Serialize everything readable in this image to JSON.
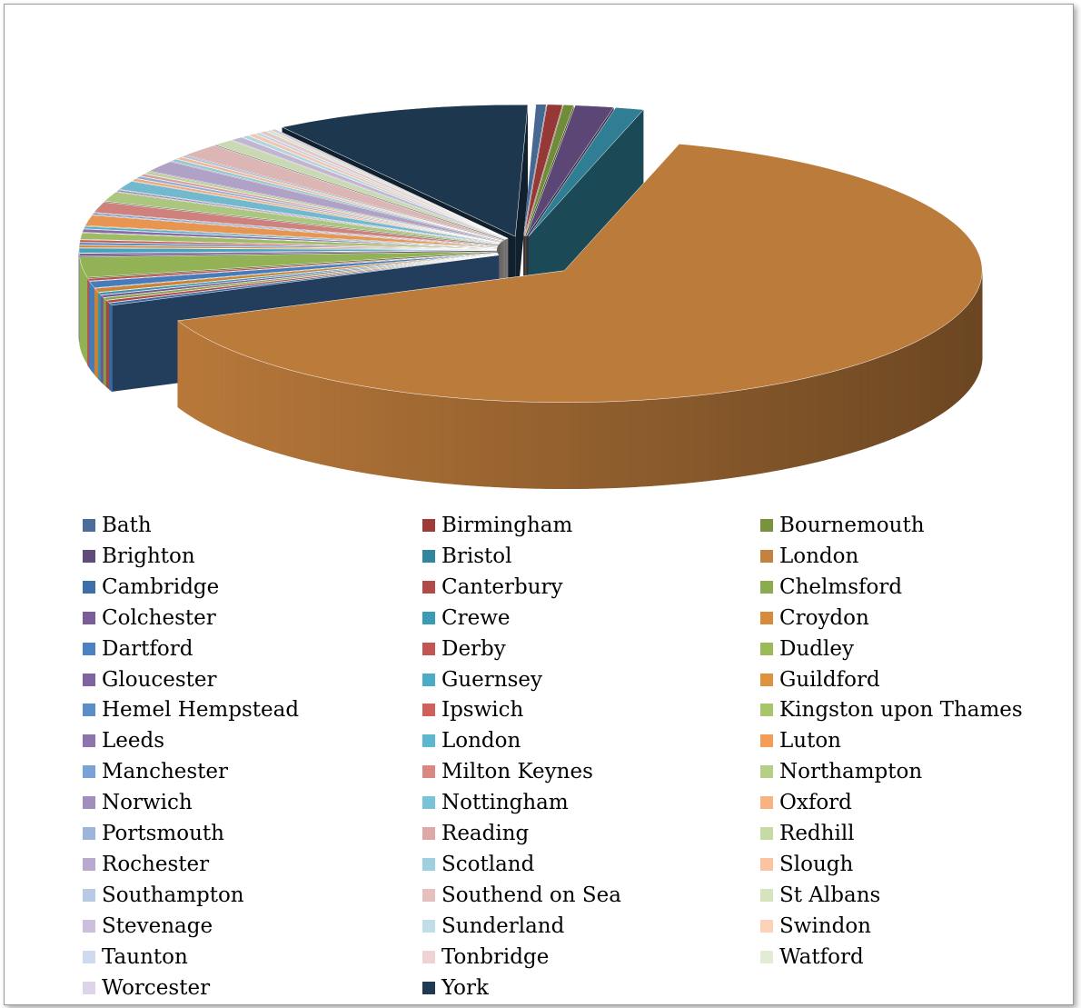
{
  "chart_data": {
    "type": "pie",
    "style": "3d-exploded",
    "legend_position": "bottom",
    "labels_shown": false,
    "slices": [
      {
        "label": "Bath",
        "value": 0.4,
        "color": "#4a6d9a"
      },
      {
        "label": "Birmingham",
        "value": 0.6,
        "color": "#9e3b38"
      },
      {
        "label": "Bournemouth",
        "value": 0.4,
        "color": "#77933c"
      },
      {
        "label": "Brighton",
        "value": 1.5,
        "color": "#604a7b"
      },
      {
        "label": "Bristol",
        "value": 1.1,
        "color": "#31859c"
      },
      {
        "label": "London",
        "value": 65.0,
        "color": "#c5813e"
      },
      {
        "label": "Cambridge",
        "value": 0.3,
        "color": "#3f6fa8"
      },
      {
        "label": "Canterbury",
        "value": 0.3,
        "color": "#b44a47"
      },
      {
        "label": "Chelmsford",
        "value": 0.3,
        "color": "#8aab4e"
      },
      {
        "label": "Colchester",
        "value": 0.3,
        "color": "#7a5c98"
      },
      {
        "label": "Crewe",
        "value": 0.3,
        "color": "#3a9cb4"
      },
      {
        "label": "Croydon",
        "value": 0.5,
        "color": "#d58b3b"
      },
      {
        "label": "Dartford",
        "value": 0.8,
        "color": "#4a82c3"
      },
      {
        "label": "Derby",
        "value": 0.3,
        "color": "#c4544f"
      },
      {
        "label": "Dudley",
        "value": 2.5,
        "color": "#9bbb59"
      },
      {
        "label": "Gloucester",
        "value": 0.3,
        "color": "#8064a2"
      },
      {
        "label": "Guernsey",
        "value": 0.6,
        "color": "#4bacc6"
      },
      {
        "label": "Guildford",
        "value": 0.3,
        "color": "#e0913e"
      },
      {
        "label": "Hemel Hempstead",
        "value": 0.3,
        "color": "#5b8ec8"
      },
      {
        "label": "Ipswich",
        "value": 0.3,
        "color": "#cf605c"
      },
      {
        "label": "Kingston upon Thames",
        "value": 0.8,
        "color": "#a7c66a"
      },
      {
        "label": "Leeds",
        "value": 0.4,
        "color": "#8d74ad"
      },
      {
        "label": "London",
        "value": 0.3,
        "color": "#5cb8d0"
      },
      {
        "label": "Luton",
        "value": 1.3,
        "color": "#f59d56"
      },
      {
        "label": "Manchester",
        "value": 0.2,
        "color": "#7ba2d4"
      },
      {
        "label": "Milton Keynes",
        "value": 1.3,
        "color": "#d98884"
      },
      {
        "label": "Northampton",
        "value": 1.2,
        "color": "#b5cf86"
      },
      {
        "label": "Norwich",
        "value": 0.2,
        "color": "#a18ebd"
      },
      {
        "label": "Nottingham",
        "value": 1.1,
        "color": "#78c3d8"
      },
      {
        "label": "Oxford",
        "value": 0.3,
        "color": "#f8b382"
      },
      {
        "label": "Portsmouth",
        "value": 0.3,
        "color": "#9db5dc"
      },
      {
        "label": "Reading",
        "value": 0.3,
        "color": "#e0a8a5"
      },
      {
        "label": "Redhill",
        "value": 0.3,
        "color": "#c6dba4"
      },
      {
        "label": "Rochester",
        "value": 1.4,
        "color": "#b9a9d0"
      },
      {
        "label": "Scotland",
        "value": 0.3,
        "color": "#9fd0e0"
      },
      {
        "label": "Slough",
        "value": 0.3,
        "color": "#fbc3a0"
      },
      {
        "label": "Southampton",
        "value": 0.2,
        "color": "#b8c9e6"
      },
      {
        "label": "Southend on Sea",
        "value": 1.6,
        "color": "#e6c0be"
      },
      {
        "label": "St Albans",
        "value": 0.8,
        "color": "#d5e4bd"
      },
      {
        "label": "Stevenage",
        "value": 0.5,
        "color": "#cbbfdd"
      },
      {
        "label": "Sunderland",
        "value": 0.3,
        "color": "#bfdeea"
      },
      {
        "label": "Swindon",
        "value": 0.3,
        "color": "#fcd3b8"
      },
      {
        "label": "Taunton",
        "value": 0.2,
        "color": "#cfdaee"
      },
      {
        "label": "Tonbridge",
        "value": 0.3,
        "color": "#eed3d2"
      },
      {
        "label": "Watford",
        "value": 0.2,
        "color": "#e2ecd4"
      },
      {
        "label": "Worcester",
        "value": 0.2,
        "color": "#ddd4e9"
      },
      {
        "label": "York",
        "value": 10.0,
        "color": "#1f3a52"
      }
    ]
  }
}
